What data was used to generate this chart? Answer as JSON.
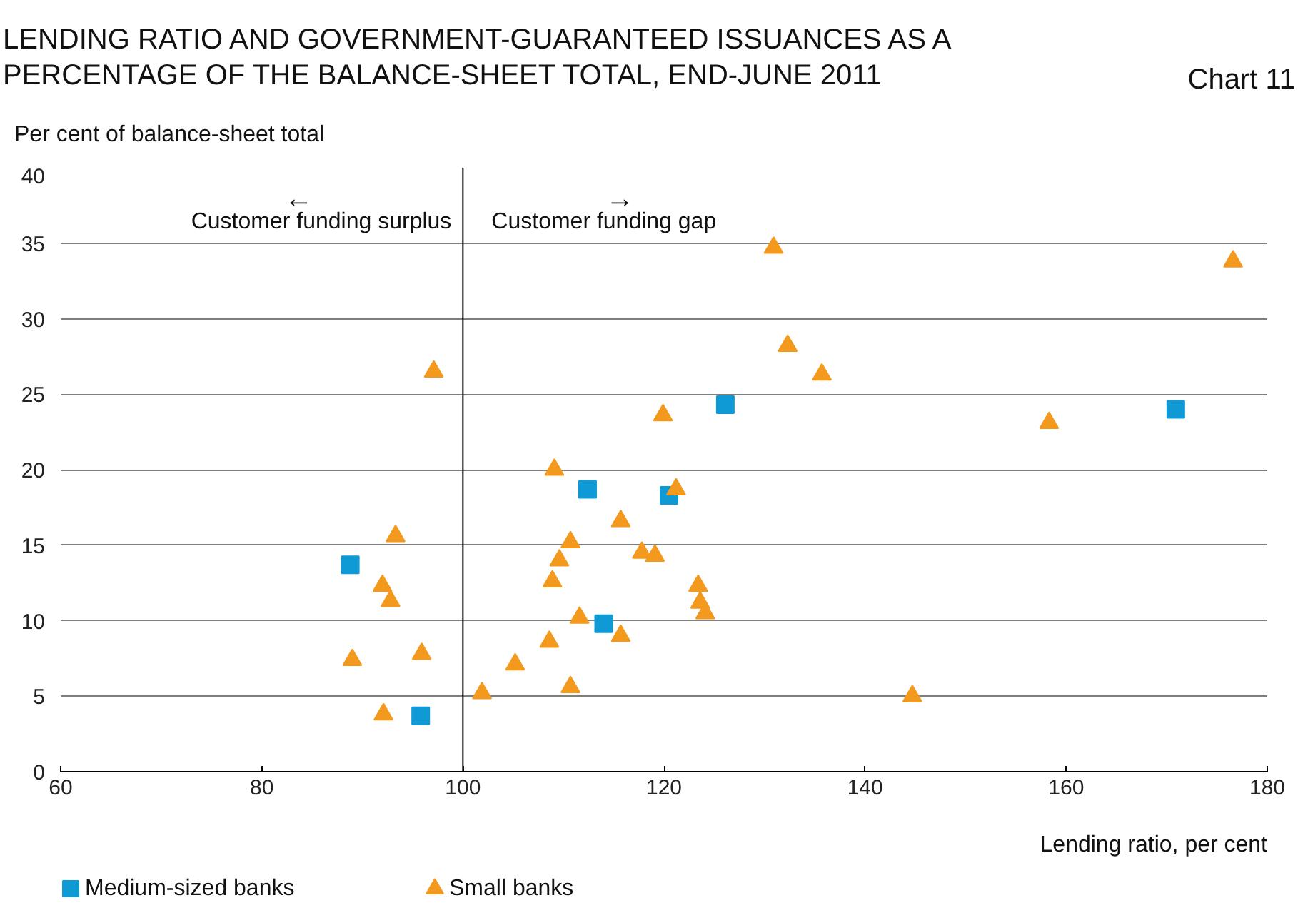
{
  "chart_data": {
    "type": "scatter",
    "title": "LENDING RATIO AND GOVERNMENT-GUARANTEED ISSUANCES AS A\nPERCENTAGE OF THE BALANCE-SHEET TOTAL, END-JUNE 2011",
    "subtitle": "Chart 11",
    "xlabel": "Lending ratio, per cent",
    "ylabel": "Per cent of balance-sheet total",
    "annotations": [
      "←",
      "Customer funding surplus",
      "→",
      "Customer funding gap"
    ],
    "xlim": [
      60,
      180
    ],
    "xticks": [
      60,
      80,
      100,
      120,
      140,
      160,
      180
    ],
    "ylim": [
      0,
      40
    ],
    "yticks": [
      0,
      5,
      10,
      15,
      20,
      25,
      30,
      35,
      40
    ],
    "grid": "y",
    "legend": "bottom",
    "ref_lines": [
      {
        "axis": "x",
        "value": 100,
        "color": "#000000"
      }
    ],
    "series": [
      {
        "name": "Medium-sized banks",
        "color": "#0f9ad6",
        "marker": "square",
        "x": [
          88.8,
          95.8,
          112.4,
          120.5,
          114.0,
          126.1,
          170.9
        ],
        "values": [
          13.7,
          3.7,
          18.7,
          18.3,
          9.8,
          24.3,
          24.0
        ]
      },
      {
        "name": "Small banks",
        "color": "#f39a1e",
        "marker": "triangle",
        "x": [
          97.1,
          93.3,
          92.0,
          92.8,
          89.0,
          92.1,
          95.9,
          101.9,
          105.2,
          108.6,
          108.9,
          109.6,
          109.1,
          110.7,
          111.6,
          110.7,
          115.7,
          115.7,
          117.8,
          119.1,
          119.9,
          121.2,
          123.4,
          123.6,
          124.1,
          130.9,
          132.3,
          135.7,
          144.7,
          158.3,
          176.6
        ],
        "values": [
          26.5,
          15.6,
          12.3,
          11.3,
          7.4,
          3.8,
          7.8,
          5.2,
          7.1,
          8.6,
          12.6,
          14.0,
          20.0,
          15.2,
          10.2,
          5.6,
          16.6,
          9.0,
          14.5,
          14.3,
          23.6,
          18.7,
          12.3,
          11.2,
          10.5,
          34.7,
          28.2,
          26.3,
          5.0,
          23.1,
          33.8
        ]
      }
    ]
  }
}
